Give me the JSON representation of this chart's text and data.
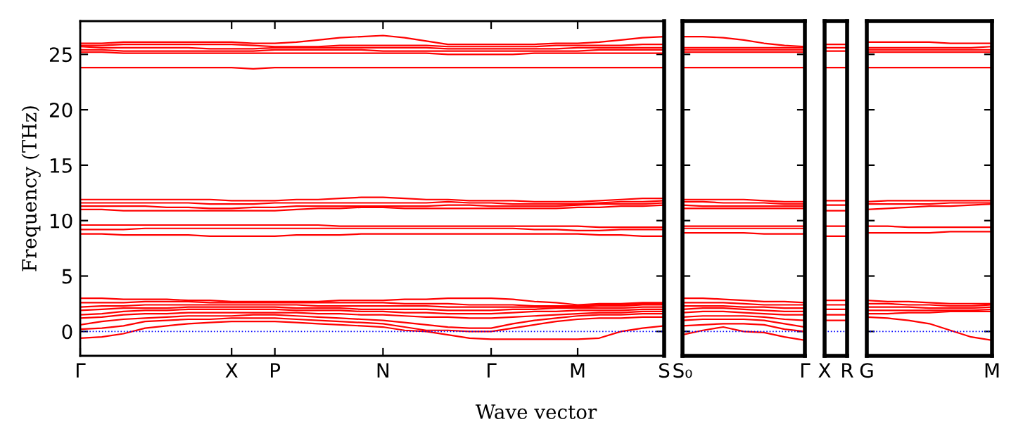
{
  "chart_data": [
    {
      "type": "line",
      "ylabel": "Frequency (THz)",
      "xlabel": "Wave vector",
      "categories": [
        "Γ",
        null,
        null,
        null,
        null,
        null,
        null,
        "X",
        null,
        "P",
        null,
        null,
        null,
        null,
        "N",
        null,
        null,
        null,
        null,
        "Γ",
        null,
        null,
        null,
        "M",
        null,
        null,
        null,
        "S"
      ],
      "ylim": [
        -2.2,
        28
      ],
      "yticks": [
        0,
        5,
        10,
        15,
        20,
        25
      ],
      "ref_lines": [
        {
          "axis": "y",
          "value": 0,
          "color": "#0000ff",
          "line_style": "dotted"
        }
      ],
      "series": [
        {
          "color": "#ff0000",
          "values": [
            -0.6,
            -0.5,
            -0.2,
            0.3,
            0.5,
            0.7,
            0.8,
            0.9,
            0.9,
            0.9,
            0.8,
            0.7,
            0.6,
            0.5,
            0.4,
            0.1,
            0.0,
            -0.3,
            -0.6,
            -0.7,
            -0.7,
            -0.7,
            -0.7,
            -0.7,
            -0.6,
            0.0,
            0.3,
            0.5
          ]
        },
        {
          "color": "#ff0000",
          "values": [
            0.2,
            0.3,
            0.5,
            0.9,
            1.0,
            1.1,
            1.1,
            1.2,
            1.2,
            1.2,
            1.1,
            1.0,
            0.9,
            0.8,
            0.7,
            0.4,
            0.1,
            0.1,
            0.0,
            0.0,
            0.3,
            0.6,
            0.9,
            1.1,
            1.2,
            1.2,
            1.3,
            1.3
          ]
        },
        {
          "color": "#ff0000",
          "values": [
            0.6,
            0.9,
            1.1,
            1.2,
            1.3,
            1.4,
            1.4,
            1.4,
            1.5,
            1.5,
            1.4,
            1.3,
            1.2,
            1.1,
            1.0,
            0.8,
            0.6,
            0.4,
            0.3,
            0.3,
            0.7,
            1.0,
            1.2,
            1.4,
            1.5,
            1.5,
            1.6,
            1.6
          ]
        },
        {
          "color": "#ff0000",
          "values": [
            1.2,
            1.3,
            1.5,
            1.6,
            1.6,
            1.7,
            1.7,
            1.7,
            1.7,
            1.7,
            1.7,
            1.6,
            1.6,
            1.5,
            1.5,
            1.4,
            1.3,
            1.3,
            1.2,
            1.2,
            1.3,
            1.4,
            1.5,
            1.6,
            1.7,
            1.7,
            1.8,
            1.8
          ]
        },
        {
          "color": "#ff0000",
          "values": [
            1.5,
            1.6,
            1.8,
            1.9,
            1.9,
            2.0,
            2.0,
            2.0,
            2.0,
            2.0,
            1.9,
            1.9,
            1.9,
            1.8,
            1.8,
            1.7,
            1.7,
            1.6,
            1.6,
            1.6,
            1.7,
            1.8,
            1.8,
            1.9,
            1.9,
            1.9,
            2.0,
            2.0
          ]
        },
        {
          "color": "#ff0000",
          "values": [
            1.9,
            2.0,
            2.1,
            2.1,
            2.1,
            2.2,
            2.2,
            2.2,
            2.2,
            2.2,
            2.1,
            2.1,
            2.1,
            2.0,
            2.0,
            2.0,
            2.0,
            1.9,
            1.9,
            1.9,
            2.0,
            2.0,
            2.1,
            2.1,
            2.1,
            2.1,
            2.2,
            2.2
          ]
        },
        {
          "color": "#ff0000",
          "values": [
            2.2,
            2.3,
            2.3,
            2.4,
            2.4,
            2.4,
            2.4,
            2.4,
            2.4,
            2.4,
            2.4,
            2.3,
            2.3,
            2.3,
            2.3,
            2.3,
            2.3,
            2.2,
            2.2,
            2.2,
            2.2,
            2.2,
            2.2,
            2.2,
            2.3,
            2.3,
            2.4,
            2.4
          ]
        },
        {
          "color": "#ff0000",
          "values": [
            2.6,
            2.6,
            2.6,
            2.7,
            2.7,
            2.7,
            2.6,
            2.6,
            2.6,
            2.6,
            2.6,
            2.6,
            2.6,
            2.6,
            2.6,
            2.5,
            2.5,
            2.5,
            2.4,
            2.4,
            2.4,
            2.3,
            2.3,
            2.3,
            2.4,
            2.4,
            2.5,
            2.5
          ]
        },
        {
          "color": "#ff0000",
          "values": [
            3.0,
            3.0,
            2.9,
            2.9,
            2.9,
            2.8,
            2.8,
            2.7,
            2.7,
            2.7,
            2.7,
            2.7,
            2.8,
            2.8,
            2.8,
            2.9,
            2.9,
            3.0,
            3.0,
            3.0,
            2.9,
            2.7,
            2.6,
            2.4,
            2.5,
            2.5,
            2.6,
            2.6
          ]
        },
        {
          "color": "#ff0000",
          "values": [
            8.8,
            8.8,
            8.7,
            8.7,
            8.7,
            8.7,
            8.6,
            8.6,
            8.6,
            8.6,
            8.7,
            8.7,
            8.7,
            8.8,
            8.8,
            8.8,
            8.8,
            8.8,
            8.8,
            8.8,
            8.8,
            8.8,
            8.8,
            8.8,
            8.7,
            8.7,
            8.6,
            8.6
          ]
        },
        {
          "color": "#ff0000",
          "values": [
            9.2,
            9.2,
            9.2,
            9.3,
            9.3,
            9.3,
            9.3,
            9.3,
            9.3,
            9.3,
            9.3,
            9.3,
            9.3,
            9.3,
            9.3,
            9.3,
            9.3,
            9.3,
            9.3,
            9.3,
            9.3,
            9.2,
            9.2,
            9.1,
            9.1,
            9.2,
            9.2,
            9.2
          ]
        },
        {
          "color": "#ff0000",
          "values": [
            9.6,
            9.6,
            9.6,
            9.6,
            9.6,
            9.6,
            9.6,
            9.6,
            9.6,
            9.6,
            9.6,
            9.6,
            9.5,
            9.5,
            9.5,
            9.5,
            9.5,
            9.5,
            9.5,
            9.5,
            9.5,
            9.5,
            9.5,
            9.5,
            9.4,
            9.4,
            9.4,
            9.4
          ]
        },
        {
          "color": "#ff0000",
          "values": [
            11.0,
            11.0,
            10.9,
            10.9,
            10.9,
            10.9,
            10.9,
            10.9,
            10.9,
            10.9,
            11.0,
            11.1,
            11.1,
            11.2,
            11.2,
            11.1,
            11.1,
            11.1,
            11.1,
            11.1,
            11.1,
            11.1,
            11.1,
            11.2,
            11.2,
            11.3,
            11.3,
            11.4
          ]
        },
        {
          "color": "#ff0000",
          "values": [
            11.3,
            11.3,
            11.3,
            11.3,
            11.2,
            11.2,
            11.1,
            11.1,
            11.2,
            11.2,
            11.3,
            11.3,
            11.3,
            11.3,
            11.3,
            11.3,
            11.3,
            11.4,
            11.4,
            11.3,
            11.3,
            11.3,
            11.3,
            11.4,
            11.5,
            11.5,
            11.5,
            11.6
          ]
        },
        {
          "color": "#ff0000",
          "values": [
            11.6,
            11.6,
            11.6,
            11.6,
            11.6,
            11.6,
            11.5,
            11.5,
            11.5,
            11.6,
            11.6,
            11.6,
            11.6,
            11.6,
            11.6,
            11.6,
            11.6,
            11.7,
            11.6,
            11.6,
            11.5,
            11.5,
            11.5,
            11.5,
            11.6,
            11.7,
            11.7,
            11.8
          ]
        },
        {
          "color": "#ff0000",
          "values": [
            11.9,
            11.9,
            11.9,
            11.9,
            11.9,
            11.9,
            11.9,
            11.8,
            11.8,
            11.8,
            11.9,
            11.9,
            12.0,
            12.1,
            12.1,
            12.0,
            11.9,
            11.9,
            11.8,
            11.8,
            11.8,
            11.7,
            11.7,
            11.7,
            11.8,
            11.9,
            12.0,
            12.0
          ]
        },
        {
          "color": "#ff0000",
          "values": [
            23.8,
            23.8,
            23.8,
            23.8,
            23.8,
            23.8,
            23.8,
            23.8,
            23.7,
            23.8,
            23.8,
            23.8,
            23.8,
            23.8,
            23.8,
            23.8,
            23.8,
            23.8,
            23.8,
            23.8,
            23.8,
            23.8,
            23.8,
            23.8,
            23.8,
            23.8,
            23.8,
            23.8
          ]
        },
        {
          "color": "#ff0000",
          "values": [
            25.2,
            25.2,
            25.1,
            25.1,
            25.1,
            25.1,
            25.1,
            25.1,
            25.1,
            25.1,
            25.1,
            25.1,
            25.1,
            25.1,
            25.1,
            25.1,
            25.1,
            25.0,
            25.0,
            25.0,
            25.0,
            25.1,
            25.1,
            25.1,
            25.1,
            25.1,
            25.1,
            25.1
          ]
        },
        {
          "color": "#ff0000",
          "values": [
            25.4,
            25.4,
            25.3,
            25.3,
            25.3,
            25.3,
            25.3,
            25.3,
            25.3,
            25.4,
            25.4,
            25.4,
            25.4,
            25.4,
            25.3,
            25.3,
            25.3,
            25.3,
            25.3,
            25.3,
            25.3,
            25.3,
            25.3,
            25.3,
            25.4,
            25.4,
            25.4,
            25.4
          ]
        },
        {
          "color": "#ff0000",
          "values": [
            25.7,
            25.6,
            25.6,
            25.6,
            25.6,
            25.6,
            25.5,
            25.5,
            25.5,
            25.6,
            25.6,
            25.6,
            25.6,
            25.6,
            25.6,
            25.6,
            25.6,
            25.5,
            25.5,
            25.5,
            25.5,
            25.5,
            25.5,
            25.6,
            25.6,
            25.6,
            25.6,
            25.6
          ]
        },
        {
          "color": "#ff0000",
          "values": [
            25.8,
            25.8,
            25.9,
            25.9,
            25.9,
            25.9,
            25.9,
            25.9,
            25.8,
            25.7,
            25.7,
            25.7,
            25.8,
            25.8,
            25.8,
            25.8,
            25.8,
            25.7,
            25.7,
            25.7,
            25.7,
            25.7,
            25.8,
            25.8,
            25.8,
            25.8,
            25.9,
            25.9
          ]
        },
        {
          "color": "#ff0000",
          "values": [
            26.0,
            26.0,
            26.1,
            26.1,
            26.1,
            26.1,
            26.1,
            26.1,
            26.0,
            26.0,
            26.1,
            26.3,
            26.5,
            26.6,
            26.7,
            26.5,
            26.2,
            25.9,
            25.9,
            25.9,
            25.9,
            25.9,
            26.0,
            26.0,
            26.1,
            26.3,
            26.5,
            26.6
          ]
        }
      ]
    },
    {
      "type": "line",
      "categories": [
        "S₀",
        null,
        null,
        null,
        null,
        null,
        "Γ"
      ],
      "ylim": [
        -2.2,
        28
      ],
      "yticks": [
        0,
        5,
        10,
        15,
        20,
        25
      ],
      "tick_labels": "x",
      "ref_lines": [
        {
          "axis": "y",
          "value": 0,
          "color": "#0000ff",
          "line_style": "dotted"
        }
      ],
      "series": [
        {
          "color": "#ff0000",
          "values": [
            -0.3,
            0.1,
            0.4,
            0.0,
            -0.1,
            -0.5,
            -0.8
          ]
        },
        {
          "color": "#ff0000",
          "values": [
            0.5,
            0.6,
            0.7,
            0.7,
            0.6,
            0.2,
            0.0
          ]
        },
        {
          "color": "#ff0000",
          "values": [
            1.0,
            1.1,
            1.1,
            1.1,
            1.0,
            0.7,
            0.4
          ]
        },
        {
          "color": "#ff0000",
          "values": [
            1.3,
            1.4,
            1.4,
            1.4,
            1.3,
            1.1,
            1.0
          ]
        },
        {
          "color": "#ff0000",
          "values": [
            1.7,
            1.8,
            1.8,
            1.7,
            1.6,
            1.5,
            1.5
          ]
        },
        {
          "color": "#ff0000",
          "values": [
            2.0,
            2.1,
            2.1,
            2.0,
            1.9,
            1.8,
            1.8
          ]
        },
        {
          "color": "#ff0000",
          "values": [
            2.3,
            2.3,
            2.3,
            2.2,
            2.2,
            2.1,
            2.1
          ]
        },
        {
          "color": "#ff0000",
          "values": [
            2.6,
            2.6,
            2.6,
            2.5,
            2.4,
            2.4,
            2.4
          ]
        },
        {
          "color": "#ff0000",
          "values": [
            3.0,
            3.0,
            2.9,
            2.8,
            2.7,
            2.7,
            2.6
          ]
        },
        {
          "color": "#ff0000",
          "values": [
            8.9,
            8.9,
            8.9,
            8.9,
            8.8,
            8.8,
            8.8
          ]
        },
        {
          "color": "#ff0000",
          "values": [
            9.3,
            9.3,
            9.3,
            9.3,
            9.3,
            9.3,
            9.3
          ]
        },
        {
          "color": "#ff0000",
          "values": [
            9.5,
            9.5,
            9.5,
            9.5,
            9.5,
            9.5,
            9.5
          ]
        },
        {
          "color": "#ff0000",
          "values": [
            11.1,
            11.1,
            11.1,
            11.1,
            11.1,
            11.1,
            11.1
          ]
        },
        {
          "color": "#ff0000",
          "values": [
            11.4,
            11.3,
            11.3,
            11.3,
            11.3,
            11.3,
            11.3
          ]
        },
        {
          "color": "#ff0000",
          "values": [
            11.7,
            11.7,
            11.6,
            11.6,
            11.6,
            11.5,
            11.5
          ]
        },
        {
          "color": "#ff0000",
          "values": [
            11.9,
            11.9,
            11.9,
            11.9,
            11.8,
            11.7,
            11.7
          ]
        },
        {
          "color": "#ff0000",
          "values": [
            23.8,
            23.8,
            23.8,
            23.8,
            23.8,
            23.8,
            23.8
          ]
        },
        {
          "color": "#ff0000",
          "values": [
            25.2,
            25.2,
            25.2,
            25.2,
            25.2,
            25.2,
            25.2
          ]
        },
        {
          "color": "#ff0000",
          "values": [
            25.4,
            25.4,
            25.4,
            25.4,
            25.4,
            25.4,
            25.4
          ]
        },
        {
          "color": "#ff0000",
          "values": [
            25.6,
            25.6,
            25.6,
            25.6,
            25.6,
            25.6,
            25.6
          ]
        },
        {
          "color": "#ff0000",
          "values": [
            26.6,
            26.6,
            26.5,
            26.3,
            26.0,
            25.8,
            25.7
          ]
        }
      ]
    },
    {
      "type": "line",
      "categories": [
        "X",
        "R"
      ],
      "ylim": [
        -2.2,
        28
      ],
      "tick_labels": "x",
      "ref_lines": [
        {
          "axis": "y",
          "value": 0,
          "color": "#0000ff",
          "line_style": "dotted"
        }
      ],
      "series": [
        {
          "color": "#ff0000",
          "values": [
            1.0,
            1.0
          ]
        },
        {
          "color": "#ff0000",
          "values": [
            1.5,
            1.5
          ]
        },
        {
          "color": "#ff0000",
          "values": [
            2.0,
            2.0
          ]
        },
        {
          "color": "#ff0000",
          "values": [
            2.4,
            2.4
          ]
        },
        {
          "color": "#ff0000",
          "values": [
            2.8,
            2.8
          ]
        },
        {
          "color": "#ff0000",
          "values": [
            8.6,
            8.6
          ]
        },
        {
          "color": "#ff0000",
          "values": [
            9.5,
            9.5
          ]
        },
        {
          "color": "#ff0000",
          "values": [
            10.9,
            10.9
          ]
        },
        {
          "color": "#ff0000",
          "values": [
            11.4,
            11.4
          ]
        },
        {
          "color": "#ff0000",
          "values": [
            11.8,
            11.8
          ]
        },
        {
          "color": "#ff0000",
          "values": [
            23.8,
            23.8
          ]
        },
        {
          "color": "#ff0000",
          "values": [
            25.3,
            25.3
          ]
        },
        {
          "color": "#ff0000",
          "values": [
            25.6,
            25.6
          ]
        },
        {
          "color": "#ff0000",
          "values": [
            25.9,
            25.9
          ]
        }
      ]
    },
    {
      "type": "line",
      "categories": [
        "G",
        null,
        null,
        null,
        null,
        null,
        "M"
      ],
      "ylim": [
        -2.2,
        28
      ],
      "yticks": [
        0,
        5,
        10,
        15,
        20,
        25
      ],
      "tick_labels": "x",
      "ref_lines": [
        {
          "axis": "y",
          "value": 0,
          "color": "#0000ff",
          "line_style": "dotted"
        }
      ],
      "series": [
        {
          "color": "#ff0000",
          "values": [
            1.3,
            1.2,
            1.0,
            0.7,
            0.1,
            -0.5,
            -0.8
          ]
        },
        {
          "color": "#ff0000",
          "values": [
            1.6,
            1.6,
            1.7,
            1.7,
            1.8,
            1.8,
            1.8
          ]
        },
        {
          "color": "#ff0000",
          "values": [
            1.9,
            1.9,
            1.9,
            1.9,
            1.9,
            1.9,
            2.0
          ]
        },
        {
          "color": "#ff0000",
          "values": [
            2.2,
            2.2,
            2.2,
            2.1,
            2.1,
            2.1,
            2.2
          ]
        },
        {
          "color": "#ff0000",
          "values": [
            2.5,
            2.5,
            2.4,
            2.4,
            2.3,
            2.3,
            2.4
          ]
        },
        {
          "color": "#ff0000",
          "values": [
            2.8,
            2.7,
            2.7,
            2.6,
            2.5,
            2.5,
            2.5
          ]
        },
        {
          "color": "#ff0000",
          "values": [
            8.9,
            8.9,
            8.9,
            8.9,
            9.0,
            9.0,
            9.0
          ]
        },
        {
          "color": "#ff0000",
          "values": [
            9.5,
            9.5,
            9.4,
            9.4,
            9.4,
            9.4,
            9.4
          ]
        },
        {
          "color": "#ff0000",
          "values": [
            11.0,
            11.1,
            11.2,
            11.3,
            11.3,
            11.4,
            11.5
          ]
        },
        {
          "color": "#ff0000",
          "values": [
            11.5,
            11.5,
            11.5,
            11.5,
            11.6,
            11.6,
            11.6
          ]
        },
        {
          "color": "#ff0000",
          "values": [
            11.7,
            11.8,
            11.8,
            11.8,
            11.8,
            11.8,
            11.8
          ]
        },
        {
          "color": "#ff0000",
          "values": [
            23.8,
            23.8,
            23.8,
            23.8,
            23.8,
            23.8,
            23.8
          ]
        },
        {
          "color": "#ff0000",
          "values": [
            25.2,
            25.2,
            25.2,
            25.2,
            25.2,
            25.2,
            25.2
          ]
        },
        {
          "color": "#ff0000",
          "values": [
            25.4,
            25.4,
            25.4,
            25.4,
            25.4,
            25.4,
            25.4
          ]
        },
        {
          "color": "#ff0000",
          "values": [
            25.6,
            25.6,
            25.6,
            25.6,
            25.6,
            25.6,
            25.7
          ]
        },
        {
          "color": "#ff0000",
          "values": [
            26.1,
            26.1,
            26.1,
            26.1,
            26.0,
            26.0,
            26.0
          ]
        }
      ]
    }
  ]
}
